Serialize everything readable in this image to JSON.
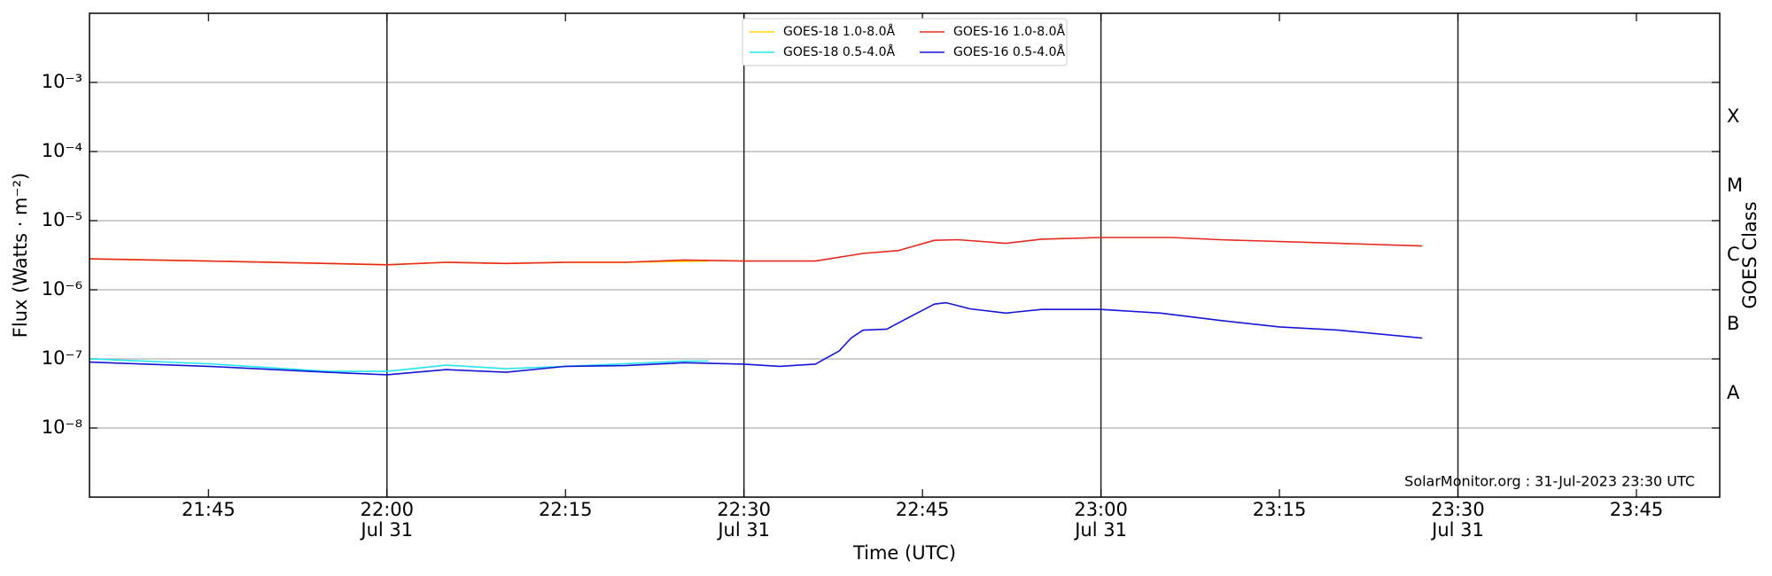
{
  "chart_data": {
    "type": "line",
    "xlabel": "Time (UTC)",
    "ylabel": "Flux (Watts · m⁻²)",
    "y2label": "GOES Class",
    "annotation": "SolarMonitor.org : 31-Jul-2023 23:30 UTC",
    "log_y": true,
    "grid": "y",
    "legend": "upper center",
    "xlim": [
      "21:35",
      "23:52"
    ],
    "xticks": [
      {
        "value": "21:45",
        "label": "21:45"
      },
      {
        "value": "22:00",
        "label": "22:00",
        "date": "Jul 31"
      },
      {
        "value": "22:15",
        "label": "22:15"
      },
      {
        "value": "22:30",
        "label": "22:30",
        "date": "Jul 31"
      },
      {
        "value": "22:45",
        "label": "22:45"
      },
      {
        "value": "23:00",
        "label": "23:00",
        "date": "Jul 31"
      },
      {
        "value": "23:15",
        "label": "23:15"
      },
      {
        "value": "23:30",
        "label": "23:30",
        "date": "Jul 31"
      },
      {
        "value": "23:45",
        "label": "23:45"
      }
    ],
    "ylim": [
      1e-09,
      0.01
    ],
    "yticks": [
      {
        "value": 1e-08,
        "label": "10⁻⁸"
      },
      {
        "value": 1e-07,
        "label": "10⁻⁷"
      },
      {
        "value": 1e-06,
        "label": "10⁻⁶"
      },
      {
        "value": 1e-05,
        "label": "10⁻⁵"
      },
      {
        "value": 0.0001,
        "label": "10⁻⁴"
      },
      {
        "value": 0.001,
        "label": "10⁻³"
      }
    ],
    "y2lim": [
      1e-09,
      0.01
    ],
    "y2ticks": [
      {
        "value": 3.16e-08,
        "label": "A"
      },
      {
        "value": 3.16e-07,
        "label": "B"
      },
      {
        "value": 3.16e-06,
        "label": "C"
      },
      {
        "value": 3.16e-05,
        "label": "M"
      },
      {
        "value": 0.000316,
        "label": "X"
      }
    ],
    "series": [
      {
        "name": "GOES-18 1.0-8.0Å",
        "color": "#ffd700",
        "x": [
          "21:35",
          "21:45",
          "21:55",
          "22:00",
          "22:05",
          "22:10",
          "22:15",
          "22:20",
          "22:27"
        ],
        "values": [
          2.8e-06,
          2.6e-06,
          2.4e-06,
          2.3e-06,
          2.5e-06,
          2.4e-06,
          2.5e-06,
          2.5e-06,
          2.6e-06
        ]
      },
      {
        "name": "GOES-16 1.0-8.0Å",
        "color": "#e8281c",
        "x": [
          "21:35",
          "21:45",
          "21:55",
          "22:00",
          "22:05",
          "22:10",
          "22:15",
          "22:20",
          "22:25",
          "22:30",
          "22:36",
          "22:40",
          "22:43",
          "22:46",
          "22:48",
          "22:52",
          "22:55",
          "23:00",
          "23:06",
          "23:10",
          "23:20",
          "23:27"
        ],
        "values": [
          2.8e-06,
          2.6e-06,
          2.4e-06,
          2.3e-06,
          2.5e-06,
          2.4e-06,
          2.5e-06,
          2.5e-06,
          2.7e-06,
          2.6e-06,
          2.6e-06,
          3.35e-06,
          3.7e-06,
          5.2e-06,
          5.3e-06,
          4.7e-06,
          5.4e-06,
          5.7e-06,
          5.7e-06,
          5.3e-06,
          4.7e-06,
          4.3e-06
        ]
      },
      {
        "name": "GOES-18 0.5-4.0Å",
        "color": "#22e5f0",
        "x": [
          "21:35",
          "21:45",
          "21:55",
          "22:00",
          "22:05",
          "22:10",
          "22:15",
          "22:20",
          "22:25",
          "22:27"
        ],
        "values": [
          1e-07,
          8.5e-08,
          6.6e-08,
          6.6e-08,
          8.1e-08,
          7.2e-08,
          7.8e-08,
          8.5e-08,
          9.3e-08,
          9.3e-08
        ]
      },
      {
        "name": "GOES-16 0.5-4.0Å",
        "color": "#1515d8",
        "x": [
          "21:35",
          "21:45",
          "21:55",
          "22:00",
          "22:05",
          "22:10",
          "22:15",
          "22:20",
          "22:25",
          "22:30",
          "22:33",
          "22:36",
          "22:38",
          "22:39",
          "22:40",
          "22:42",
          "22:44",
          "22:46",
          "22:47",
          "22:49",
          "22:52",
          "22:55",
          "23:00",
          "23:05",
          "23:10",
          "23:15",
          "23:20",
          "23:27"
        ],
        "values": [
          9e-08,
          7.8e-08,
          6.4e-08,
          5.9e-08,
          7e-08,
          6.4e-08,
          7.8e-08,
          8e-08,
          8.8e-08,
          8.4e-08,
          7.8e-08,
          8.4e-08,
          1.3e-07,
          2e-07,
          2.6e-07,
          2.7e-07,
          4.1e-07,
          6.2e-07,
          6.5e-07,
          5.3e-07,
          4.6e-07,
          5.2e-07,
          5.2e-07,
          4.6e-07,
          3.6e-07,
          2.9e-07,
          2.6e-07,
          2e-07
        ]
      }
    ]
  }
}
